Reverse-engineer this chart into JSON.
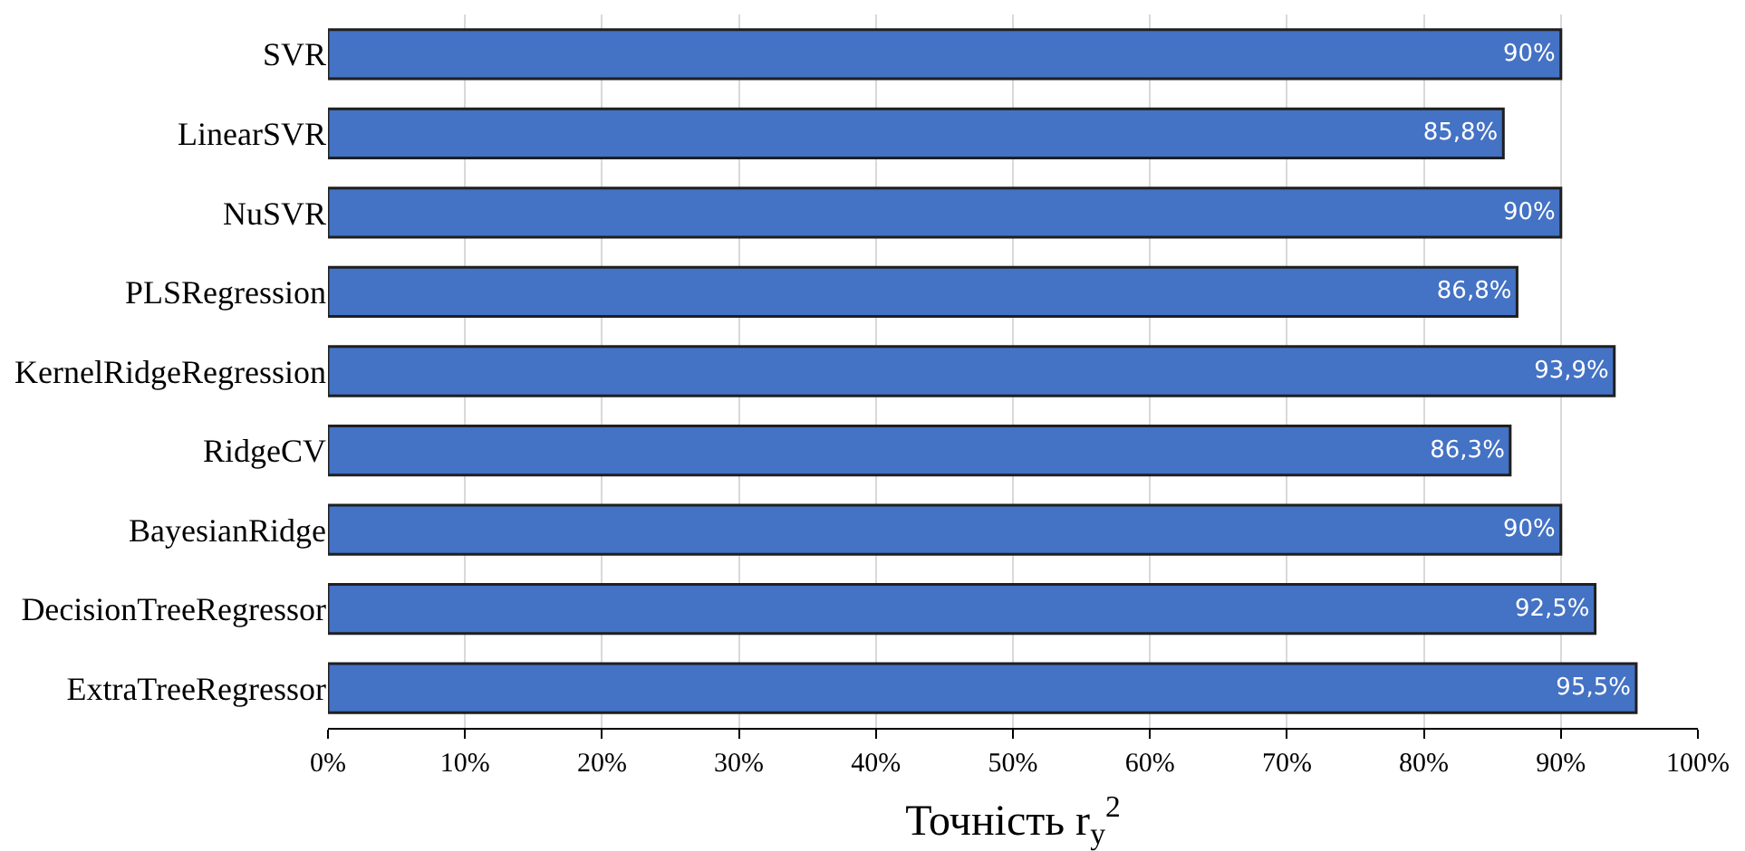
{
  "chart_data": {
    "type": "bar",
    "orientation": "horizontal",
    "xlabel": "Точність r$_{y}$$^{2}$",
    "categories": [
      "SVR",
      "LinearSVR",
      "NuSVR",
      "PLSRegression",
      "KernelRidgeRegression",
      "RidgeCV",
      "BayesianRidge",
      "DecisionTreeRegressor",
      "ExtraTreeRegressor"
    ],
    "values": [
      90,
      85.8,
      90,
      86.8,
      93.9,
      86.3,
      90,
      92.5,
      95.5
    ],
    "value_labels": [
      "90%",
      "85,8%",
      "90%",
      "86,8%",
      "93,9%",
      "86,3%",
      "90%",
      "92,5%",
      "95,5%"
    ],
    "color": "#4472c4",
    "xlim": [
      0,
      100
    ],
    "xticks": [
      {
        "value": 0,
        "label": "0%"
      },
      {
        "value": 10,
        "label": "10%"
      },
      {
        "value": 20,
        "label": "20%"
      },
      {
        "value": 30,
        "label": "30%"
      },
      {
        "value": 40,
        "label": "40%"
      },
      {
        "value": 50,
        "label": "50%"
      },
      {
        "value": 60,
        "label": "60%"
      },
      {
        "value": 70,
        "label": "70%"
      },
      {
        "value": 80,
        "label": "80%"
      },
      {
        "value": 90,
        "label": "90%"
      },
      {
        "value": 100,
        "label": "100%"
      }
    ],
    "grid": "x",
    "legend": false
  }
}
